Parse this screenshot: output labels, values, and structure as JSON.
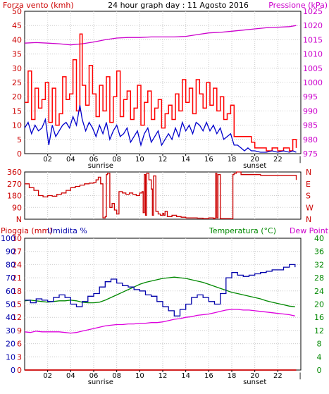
{
  "chart_data": [
    {
      "type": "line",
      "title": "24 hour graph day : 11 Agosto 2016",
      "left_label": "Forza vento (kmh)",
      "right_label": "Pressione (kPa)",
      "left_ticks": [
        "0",
        "5",
        "10",
        "15",
        "20",
        "25",
        "30",
        "35",
        "40",
        "45",
        "50"
      ],
      "right_ticks": [
        "975",
        "980",
        "985",
        "990",
        "995",
        "1000",
        "1005",
        "1010",
        "1015",
        "1020",
        "1025"
      ],
      "x_ticks": [
        "02",
        "04",
        "06",
        "08",
        "10",
        "12",
        "14",
        "16",
        "18",
        "20",
        "22"
      ],
      "sunrise_label": "sunrise",
      "sunset_label": "sunset",
      "ylim": [
        0,
        50
      ],
      "y2lim": [
        975,
        1025
      ],
      "x_range": [
        0,
        24
      ],
      "series": [
        {
          "key": "gust",
          "color": "#ff0000",
          "axis": "left",
          "x": [
            0,
            0.3,
            0.6,
            0.9,
            1.2,
            1.5,
            1.8,
            2.1,
            2.4,
            2.7,
            3.0,
            3.3,
            3.6,
            3.9,
            4.2,
            4.5,
            4.8,
            5.0,
            5.3,
            5.6,
            5.9,
            6.2,
            6.5,
            6.8,
            7.1,
            7.4,
            7.7,
            8.0,
            8.3,
            8.6,
            8.9,
            9.2,
            9.5,
            9.8,
            10.1,
            10.4,
            10.7,
            11.0,
            11.3,
            11.6,
            11.9,
            12.2,
            12.5,
            12.8,
            13.1,
            13.4,
            13.7,
            14.0,
            14.3,
            14.6,
            14.9,
            15.2,
            15.5,
            15.8,
            16.1,
            16.4,
            16.7,
            17.0,
            17.3,
            17.6,
            17.9,
            18.2,
            18.5,
            18.8,
            19.1,
            19.4,
            19.7,
            20.0,
            20.5,
            21.0,
            21.5,
            22.0,
            22.5,
            23.0,
            23.3,
            23.6
          ],
          "values": [
            18,
            29,
            12,
            23,
            16,
            19,
            25,
            11,
            23,
            10,
            14,
            27,
            19,
            21,
            33,
            15,
            42,
            24,
            17,
            31,
            21,
            13,
            24,
            15,
            27,
            11,
            20,
            29,
            13,
            19,
            22,
            12,
            16,
            24,
            10,
            18,
            22,
            12,
            16,
            19,
            9,
            14,
            17,
            12,
            21,
            15,
            26,
            18,
            23,
            14,
            26,
            21,
            16,
            25,
            17,
            23,
            15,
            20,
            12,
            14,
            17,
            6,
            6,
            6,
            6,
            6,
            4,
            2,
            2,
            1,
            2,
            1,
            2,
            1,
            5,
            2
          ]
        },
        {
          "key": "wind",
          "color": "#0000cc",
          "axis": "left",
          "x": [
            0,
            0.3,
            0.6,
            0.9,
            1.2,
            1.5,
            1.8,
            2.1,
            2.4,
            2.7,
            3.0,
            3.3,
            3.6,
            3.9,
            4.2,
            4.5,
            4.8,
            5.0,
            5.3,
            5.6,
            5.9,
            6.2,
            6.5,
            6.8,
            7.1,
            7.4,
            7.7,
            8.0,
            8.3,
            8.6,
            8.9,
            9.2,
            9.5,
            9.8,
            10.1,
            10.4,
            10.7,
            11.0,
            11.3,
            11.6,
            11.9,
            12.2,
            12.5,
            12.8,
            13.1,
            13.4,
            13.7,
            14.0,
            14.3,
            14.6,
            14.9,
            15.2,
            15.5,
            15.8,
            16.1,
            16.4,
            16.7,
            17.0,
            17.3,
            17.6,
            17.9,
            18.2,
            18.5,
            18.8,
            19.1,
            19.4,
            19.7,
            20.0,
            20.5,
            21.0,
            21.5,
            22.0,
            22.5,
            23.0,
            23.3,
            23.6
          ],
          "values": [
            9,
            11,
            7,
            10,
            8,
            9,
            12,
            3,
            10,
            6,
            8,
            10,
            11,
            9,
            13,
            10,
            17,
            12,
            8,
            11,
            9,
            6,
            10,
            7,
            11,
            5,
            8,
            10,
            6,
            7,
            9,
            4,
            6,
            8,
            3,
            7,
            9,
            4,
            6,
            8,
            3,
            5,
            7,
            5,
            9,
            6,
            11,
            8,
            10,
            7,
            11,
            10,
            8,
            11,
            8,
            10,
            7,
            9,
            5,
            6,
            7,
            3,
            3,
            2,
            1,
            2,
            1,
            1,
            0.5,
            0.5,
            1,
            0.5,
            1,
            0.5,
            1,
            0.5
          ]
        },
        {
          "key": "pressure",
          "color": "#cc00cc",
          "axis": "right",
          "x": [
            0,
            1,
            2,
            3,
            4,
            5,
            6,
            7,
            8,
            9,
            10,
            11,
            12,
            13,
            14,
            15,
            16,
            17,
            18,
            19,
            20,
            21,
            22,
            23,
            23.6
          ],
          "values": [
            1013.8,
            1014.0,
            1013.8,
            1013.6,
            1013.2,
            1013.6,
            1014.2,
            1015.0,
            1015.6,
            1015.8,
            1015.8,
            1016.0,
            1016.0,
            1016.0,
            1016.2,
            1016.8,
            1017.4,
            1017.6,
            1018.0,
            1018.4,
            1018.8,
            1019.2,
            1019.4,
            1019.6,
            1020.0
          ]
        }
      ]
    },
    {
      "type": "line",
      "left_ticks": [
        "N",
        "90",
        "180",
        "270",
        "360"
      ],
      "right_ticks": [
        "N",
        "W",
        "S",
        "E",
        "N"
      ],
      "ylim": [
        0,
        360
      ],
      "x_range": [
        0,
        24
      ],
      "series": [
        {
          "key": "direction",
          "color": "#cc0000",
          "x": [
            0,
            0.4,
            0.8,
            1.2,
            1.6,
            2.0,
            2.4,
            2.8,
            3.2,
            3.6,
            4.0,
            4.4,
            4.8,
            5.2,
            5.6,
            6.0,
            6.2,
            6.4,
            6.6,
            6.8,
            7.0,
            7.1,
            7.2,
            7.4,
            7.6,
            7.8,
            8.0,
            8.2,
            8.5,
            8.8,
            9.1,
            9.4,
            9.7,
            10.0,
            10.2,
            10.3,
            10.4,
            10.5,
            10.6,
            10.8,
            11.0,
            11.1,
            11.2,
            11.4,
            11.6,
            11.8,
            12.0,
            12.1,
            12.2,
            12.4,
            12.8,
            13.2,
            13.6,
            14.0,
            14.5,
            15.0,
            15.5,
            16.0,
            16.4,
            16.5,
            16.6,
            16.7,
            16.8,
            17.0,
            17.2,
            17.4,
            17.6,
            17.8,
            18.0,
            18.1,
            18.2,
            18.4,
            18.8,
            19.5,
            20.5,
            21.5,
            22.5,
            23.2,
            23.6
          ],
          "values": [
            270,
            240,
            220,
            180,
            170,
            180,
            175,
            190,
            200,
            220,
            240,
            250,
            260,
            270,
            275,
            280,
            300,
            320,
            270,
            10,
            20,
            340,
            350,
            90,
            120,
            70,
            40,
            210,
            200,
            190,
            200,
            190,
            180,
            200,
            210,
            50,
            340,
            30,
            350,
            300,
            230,
            30,
            330,
            60,
            40,
            30,
            45,
            30,
            60,
            20,
            30,
            20,
            15,
            10,
            10,
            8,
            5,
            10,
            5,
            8,
            350,
            10,
            340,
            5,
            5,
            5,
            5,
            5,
            5,
            340,
            350,
            360,
            340,
            340,
            335,
            335,
            335,
            335,
            300
          ]
        }
      ]
    },
    {
      "type": "line",
      "left_label_rain": "Pioggia (mm)",
      "left_label_hum": "Umidita %",
      "right_label_temp": "Temperatura (°C)",
      "right_label_dew": "Dew Point",
      "rain_ticks": [
        "0",
        "3",
        "6",
        "9",
        "12",
        "15",
        "18",
        "21",
        "24",
        "27",
        "30"
      ],
      "hum_ticks": [
        "0",
        "10",
        "20",
        "30",
        "40",
        "50",
        "60",
        "70",
        "80",
        "90",
        "100"
      ],
      "temp_ticks": [
        "0",
        "4",
        "8",
        "12",
        "16",
        "20",
        "24",
        "28",
        "32",
        "36",
        "40"
      ],
      "x_ticks": [
        "02",
        "04",
        "06",
        "08",
        "10",
        "12",
        "14",
        "16",
        "18",
        "20",
        "22"
      ],
      "sunrise_label": "sunrise",
      "sunset_label": "sunset",
      "ylim": [
        0,
        100
      ],
      "y2lim": [
        0,
        40
      ],
      "x_range": [
        0,
        24
      ],
      "series": [
        {
          "key": "humidity",
          "color": "#0000aa",
          "axis": "hum",
          "x": [
            0,
            0.5,
            1,
            1.5,
            2,
            2.5,
            3,
            3.5,
            4,
            4.5,
            5,
            5.5,
            6,
            6.5,
            7,
            7.5,
            8,
            8.5,
            9,
            9.5,
            10,
            10.5,
            11,
            11.5,
            12,
            12.5,
            13,
            13.5,
            14,
            14.5,
            15,
            15.5,
            16,
            16.5,
            17,
            17.5,
            18,
            18.5,
            19,
            19.5,
            20,
            20.5,
            21,
            21.5,
            22,
            22.5,
            23,
            23.5
          ],
          "values": [
            53,
            51,
            54,
            53,
            52,
            55,
            57,
            55,
            50,
            48,
            52,
            56,
            58,
            63,
            67,
            69,
            66,
            64,
            63,
            61,
            60,
            57,
            56,
            52,
            48,
            45,
            41,
            46,
            50,
            55,
            57,
            55,
            52,
            50,
            58,
            70,
            74,
            72,
            71,
            72,
            73,
            74,
            75,
            76,
            76,
            78,
            80,
            78
          ]
        },
        {
          "key": "temperature",
          "color": "#008800",
          "axis": "temp",
          "x": [
            0,
            0.5,
            1,
            1.5,
            2,
            2.5,
            3,
            3.5,
            4,
            4.5,
            5,
            5.5,
            6,
            6.5,
            7,
            7.5,
            8,
            8.5,
            9,
            9.5,
            10,
            10.5,
            11,
            11.5,
            12,
            12.5,
            13,
            13.5,
            14,
            14.5,
            15,
            15.5,
            16,
            16.5,
            17,
            17.5,
            18,
            18.5,
            19,
            19.5,
            20,
            20.5,
            21,
            21.5,
            22,
            22.5,
            23,
            23.5
          ],
          "values": [
            21.0,
            21.2,
            21.0,
            20.8,
            20.6,
            20.8,
            21.0,
            21.0,
            21.2,
            21.0,
            20.6,
            20.4,
            20.4,
            20.6,
            21.2,
            22.0,
            22.8,
            23.6,
            24.4,
            25.2,
            26.0,
            26.6,
            27.0,
            27.4,
            27.8,
            28.0,
            28.2,
            28.0,
            27.8,
            27.4,
            27.0,
            26.6,
            26.0,
            25.4,
            24.8,
            24.2,
            23.6,
            23.2,
            22.8,
            22.4,
            22.0,
            21.6,
            21.0,
            20.6,
            20.2,
            19.8,
            19.4,
            19.2
          ]
        },
        {
          "key": "dewpoint",
          "color": "#dd00dd",
          "axis": "temp",
          "x": [
            0,
            0.5,
            1,
            1.5,
            2,
            2.5,
            3,
            3.5,
            4,
            4.5,
            5,
            5.5,
            6,
            6.5,
            7,
            7.5,
            8,
            8.5,
            9,
            9.5,
            10,
            10.5,
            11,
            11.5,
            12,
            12.5,
            13,
            13.5,
            14,
            14.5,
            15,
            15.5,
            16,
            16.5,
            17,
            17.5,
            18,
            18.5,
            19,
            19.5,
            20,
            20.5,
            21,
            21.5,
            22,
            22.5,
            23,
            23.5
          ],
          "values": [
            11.6,
            11.4,
            11.8,
            11.6,
            11.6,
            11.6,
            11.6,
            11.4,
            11.2,
            11.4,
            11.8,
            12.2,
            12.6,
            13.0,
            13.4,
            13.6,
            13.8,
            13.8,
            14.0,
            14.0,
            14.2,
            14.2,
            14.4,
            14.4,
            14.6,
            15.0,
            15.4,
            15.6,
            16.0,
            16.2,
            16.6,
            16.8,
            17.0,
            17.4,
            17.8,
            18.2,
            18.4,
            18.4,
            18.2,
            18.2,
            18.0,
            17.8,
            17.6,
            17.4,
            17.2,
            17.0,
            16.8,
            16.4
          ]
        },
        {
          "key": "rain",
          "color": "#cc0000",
          "axis": "rain",
          "x": [
            0,
            23.6
          ],
          "values": [
            0,
            0
          ]
        }
      ]
    }
  ]
}
